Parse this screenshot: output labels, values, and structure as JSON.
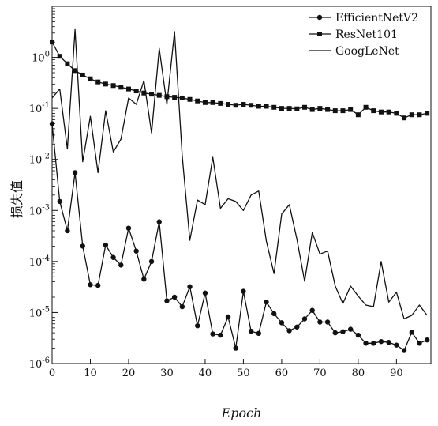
{
  "chart_data": {
    "type": "line",
    "title": "",
    "xlabel": "Epoch",
    "ylabel": "损失值",
    "x_scale": "linear",
    "y_scale": "log",
    "xlim": [
      0,
      99
    ],
    "ylim": [
      1e-06,
      10
    ],
    "x_ticks": [
      0,
      10,
      20,
      30,
      40,
      50,
      60,
      70,
      80,
      90
    ],
    "x_tick_labels": [
      "0",
      "10",
      "20",
      "30",
      "40",
      "50",
      "60",
      "70",
      "80",
      "90"
    ],
    "y_ticks": [
      1e-06,
      1e-05,
      0.0001,
      0.001,
      0.01,
      0.1,
      1
    ],
    "y_tick_labels": [
      {
        "base": "10",
        "exp": "-6"
      },
      {
        "base": "10",
        "exp": "-5"
      },
      {
        "base": "10",
        "exp": "-4"
      },
      {
        "base": "10",
        "exp": "-3"
      },
      {
        "base": "10",
        "exp": "-2"
      },
      {
        "base": "10",
        "exp": "-1"
      },
      {
        "base": "10",
        "exp": "0"
      }
    ],
    "grid": false,
    "legend_position": "top-right",
    "series": [
      {
        "name": "EfficientNetV2",
        "marker": "circle",
        "color": "#111111",
        "x": [
          0,
          2,
          4,
          6,
          8,
          10,
          12,
          14,
          16,
          18,
          20,
          22,
          24,
          26,
          28,
          30,
          32,
          34,
          36,
          38,
          40,
          42,
          44,
          46,
          48,
          50,
          52,
          54,
          56,
          58,
          60,
          62,
          64,
          66,
          68,
          70,
          72,
          74,
          76,
          78,
          80,
          82,
          84,
          86,
          88,
          90,
          92,
          94,
          96,
          98
        ],
        "y": [
          0.05,
          0.0015,
          0.0004,
          0.0055,
          0.0002,
          3.5e-05,
          3.4e-05,
          0.00021,
          0.00012,
          8.5e-05,
          0.00045,
          0.00016,
          4.5e-05,
          0.0001,
          0.0006,
          1.7e-05,
          2e-05,
          1.3e-05,
          3.2e-05,
          5.5e-06,
          2.4e-05,
          3.8e-06,
          3.6e-06,
          8.2e-06,
          2e-06,
          2.6e-05,
          4.3e-06,
          3.9e-06,
          1.6e-05,
          9.5e-06,
          6.3e-06,
          4.4e-06,
          5.2e-06,
          7.5e-06,
          1.1e-05,
          6.5e-06,
          6.5e-06,
          4e-06,
          4.2e-06,
          4.7e-06,
          3.6e-06,
          2.5e-06,
          2.5e-06,
          2.7e-06,
          2.6e-06,
          2.3e-06,
          1.8e-06,
          4.1e-06,
          2.5e-06,
          2.9e-06
        ]
      },
      {
        "name": "ResNet101",
        "marker": "square",
        "color": "#111111",
        "x": [
          0,
          2,
          4,
          6,
          8,
          10,
          12,
          14,
          16,
          18,
          20,
          22,
          24,
          26,
          28,
          30,
          32,
          34,
          36,
          38,
          40,
          42,
          44,
          46,
          48,
          50,
          52,
          54,
          56,
          58,
          60,
          62,
          64,
          66,
          68,
          70,
          72,
          74,
          76,
          78,
          80,
          82,
          84,
          86,
          88,
          90,
          92,
          94,
          96,
          98
        ],
        "y": [
          2.0,
          1.05,
          0.75,
          0.55,
          0.45,
          0.38,
          0.33,
          0.3,
          0.28,
          0.26,
          0.24,
          0.22,
          0.2,
          0.19,
          0.18,
          0.17,
          0.165,
          0.16,
          0.15,
          0.14,
          0.13,
          0.13,
          0.125,
          0.12,
          0.115,
          0.12,
          0.115,
          0.11,
          0.11,
          0.105,
          0.1,
          0.1,
          0.098,
          0.105,
          0.095,
          0.1,
          0.095,
          0.09,
          0.09,
          0.095,
          0.075,
          0.105,
          0.09,
          0.085,
          0.085,
          0.08,
          0.065,
          0.075,
          0.075,
          0.08
        ]
      },
      {
        "name": "GoogLeNet",
        "marker": "none",
        "color": "#111111",
        "x": [
          0,
          2,
          4,
          6,
          8,
          10,
          12,
          14,
          16,
          18,
          20,
          22,
          24,
          26,
          28,
          30,
          32,
          34,
          36,
          38,
          40,
          42,
          44,
          46,
          48,
          50,
          52,
          54,
          56,
          58,
          60,
          62,
          64,
          66,
          68,
          70,
          72,
          74,
          76,
          78,
          80,
          82,
          84,
          86,
          88,
          90,
          92,
          94,
          96,
          98
        ],
        "y": [
          0.16,
          0.24,
          0.016,
          3.5,
          0.009,
          0.07,
          0.0055,
          0.09,
          0.014,
          0.025,
          0.16,
          0.12,
          0.35,
          0.033,
          1.5,
          0.12,
          3.2,
          0.012,
          0.00026,
          0.0016,
          0.0013,
          0.011,
          0.0011,
          0.0017,
          0.0015,
          0.001,
          0.002,
          0.0024,
          0.00025,
          5.8e-05,
          0.00085,
          0.0013,
          0.00027,
          4.1e-05,
          0.00037,
          0.00014,
          0.00016,
          3.3e-05,
          1.5e-05,
          3.3e-05,
          2.1e-05,
          1.4e-05,
          1.3e-05,
          0.0001,
          1.6e-05,
          2.5e-05,
          7.5e-06,
          8.8e-06,
          1.4e-05,
          8.8e-06
        ]
      }
    ]
  }
}
